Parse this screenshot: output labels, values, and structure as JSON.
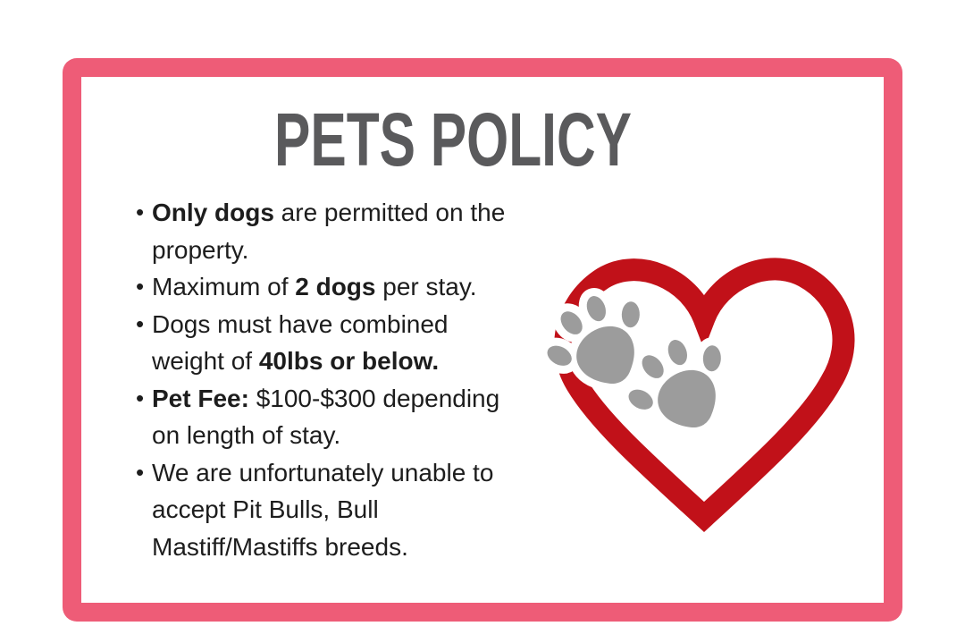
{
  "card": {
    "title": "PETS POLICY",
    "title_color": "#5a5a5c",
    "border_color": "#ee5c77",
    "text_color": "#1d1d1d"
  },
  "policy": {
    "bullets": [
      {
        "segments": [
          {
            "text": "Only dogs",
            "bold": true
          },
          {
            "text": " are permitted on the property.",
            "bold": false
          }
        ]
      },
      {
        "segments": [
          {
            "text": "Maximum of ",
            "bold": false
          },
          {
            "text": "2 dogs",
            "bold": true
          },
          {
            "text": " per stay.",
            "bold": false
          }
        ]
      },
      {
        "segments": [
          {
            "text": "Dogs must have combined weight of ",
            "bold": false
          },
          {
            "text": "40lbs or below.",
            "bold": true
          }
        ]
      },
      {
        "segments": [
          {
            "text": "Pet Fee:",
            "bold": true
          },
          {
            "text": " $100-$300 depending on length of stay.",
            "bold": false
          }
        ]
      },
      {
        "segments": [
          {
            "text": "We are unfortunately unable to accept Pit Bulls, Bull Mastiff/Mastiffs breeds.",
            "bold": false
          }
        ]
      }
    ]
  },
  "graphic": {
    "icons": [
      "heart-icon",
      "paw-print-icon"
    ],
    "heart_color": "#c11119",
    "paw_color": "#9c9c9c"
  }
}
